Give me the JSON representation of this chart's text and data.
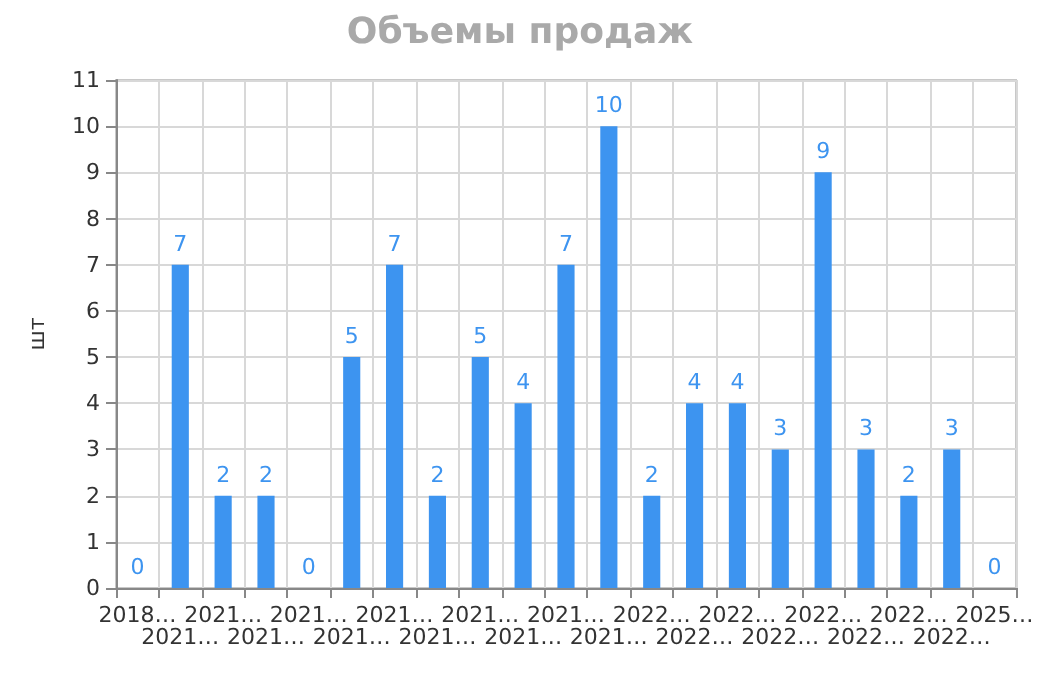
{
  "chart_data": {
    "type": "bar",
    "title": "Объемы продаж",
    "ylabel": "шт",
    "categories": [
      "2018…",
      "2021…",
      "2021…",
      "2021…",
      "2021…",
      "2021…",
      "2021…",
      "2021…",
      "2021…",
      "2021…",
      "2021…",
      "2021…",
      "2022…",
      "2022…",
      "2022…",
      "2022…",
      "2022…",
      "2022…",
      "2022…",
      "2022…",
      "2025…"
    ],
    "values": [
      0,
      7,
      2,
      2,
      0,
      5,
      7,
      2,
      5,
      4,
      7,
      10,
      2,
      4,
      4,
      3,
      9,
      3,
      2,
      3,
      0
    ],
    "color": "#3d94f0",
    "ylim": [
      0,
      11
    ],
    "yticks": [
      0,
      1,
      2,
      3,
      4,
      5,
      6,
      7,
      8,
      9,
      10,
      11
    ],
    "grid": true,
    "data_labels": true
  }
}
